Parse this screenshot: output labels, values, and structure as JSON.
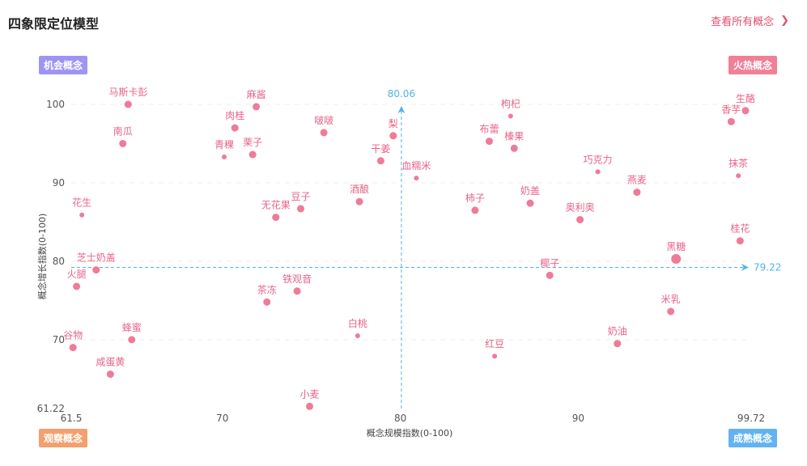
{
  "header": {
    "title": "四象限定位模型",
    "view_all": "查看所有概念"
  },
  "quadrants": {
    "opportunity": "机会概念",
    "hot": "火热概念",
    "observe": "观察概念",
    "mature": "成熟概念"
  },
  "colors": {
    "point": "#f07a98",
    "label": "#e86488",
    "ref_line": "#4fb3e8",
    "grid": "#eeeeee"
  },
  "chart_data": {
    "type": "scatter",
    "xlabel": "概念规模指数(0-100)",
    "ylabel": "概念增长指数(0-100)",
    "xlim": [
      61.5,
      99.72
    ],
    "ylim": [
      61.22,
      100
    ],
    "x_ticks": [
      "61.5",
      "70",
      "80",
      "90",
      "99.72"
    ],
    "y_ticks": [
      "61.22",
      "70",
      "80",
      "90",
      "100"
    ],
    "ref_x": 80.06,
    "ref_y": 79.22,
    "ref_x_label": "80.06",
    "ref_y_label": "79.22",
    "grid": true,
    "points": [
      {
        "name": "马斯卡彭",
        "x": 64.7,
        "y": 100.0,
        "size": "m"
      },
      {
        "name": "麻酱",
        "x": 71.9,
        "y": 99.7,
        "size": "m"
      },
      {
        "name": "枸杞",
        "x": 86.2,
        "y": 98.5,
        "size": "s"
      },
      {
        "name": "生酪",
        "x": 99.4,
        "y": 99.2,
        "size": "m"
      },
      {
        "name": "香芋",
        "x": 98.6,
        "y": 97.8,
        "size": "m"
      },
      {
        "name": "肉桂",
        "x": 70.7,
        "y": 97.0,
        "size": "m"
      },
      {
        "name": "梨",
        "x": 79.6,
        "y": 96.0,
        "size": "m"
      },
      {
        "name": "啵啵",
        "x": 75.7,
        "y": 96.4,
        "size": "m"
      },
      {
        "name": "南瓜",
        "x": 64.4,
        "y": 95.0,
        "size": "m"
      },
      {
        "name": "布蕾",
        "x": 85.0,
        "y": 95.3,
        "size": "m"
      },
      {
        "name": "榛果",
        "x": 86.4,
        "y": 94.4,
        "size": "m"
      },
      {
        "name": "青稞",
        "x": 70.1,
        "y": 93.3,
        "size": "s"
      },
      {
        "name": "栗子",
        "x": 71.7,
        "y": 93.6,
        "size": "m"
      },
      {
        "name": "干姜",
        "x": 78.9,
        "y": 92.8,
        "size": "m"
      },
      {
        "name": "巧克力",
        "x": 91.1,
        "y": 91.4,
        "size": "s"
      },
      {
        "name": "抹茶",
        "x": 99.0,
        "y": 90.9,
        "size": "s"
      },
      {
        "name": "血糯米",
        "x": 80.9,
        "y": 90.6,
        "size": "s"
      },
      {
        "name": "燕麦",
        "x": 93.3,
        "y": 88.8,
        "size": "m"
      },
      {
        "name": "酒酿",
        "x": 77.7,
        "y": 87.6,
        "size": "m"
      },
      {
        "name": "奶盖",
        "x": 87.3,
        "y": 87.4,
        "size": "m"
      },
      {
        "name": "豆子",
        "x": 74.4,
        "y": 86.7,
        "size": "m"
      },
      {
        "name": "柿子",
        "x": 84.2,
        "y": 86.5,
        "size": "m"
      },
      {
        "name": "花生",
        "x": 62.1,
        "y": 85.9,
        "size": "s"
      },
      {
        "name": "无花果",
        "x": 73.0,
        "y": 85.6,
        "size": "m"
      },
      {
        "name": "奥利奥",
        "x": 90.1,
        "y": 85.3,
        "size": "m"
      },
      {
        "name": "桂花",
        "x": 99.1,
        "y": 82.6,
        "size": "m"
      },
      {
        "name": "黑糖",
        "x": 95.5,
        "y": 80.3,
        "size": "l"
      },
      {
        "name": "芝士奶盖",
        "x": 62.9,
        "y": 78.9,
        "size": "m"
      },
      {
        "name": "椰子",
        "x": 88.4,
        "y": 78.2,
        "size": "m"
      },
      {
        "name": "火腿",
        "x": 61.8,
        "y": 76.8,
        "size": "m"
      },
      {
        "name": "铁观音",
        "x": 74.2,
        "y": 76.2,
        "size": "m"
      },
      {
        "name": "茶冻",
        "x": 72.5,
        "y": 74.8,
        "size": "m"
      },
      {
        "name": "米乳",
        "x": 95.2,
        "y": 73.6,
        "size": "m"
      },
      {
        "name": "蜂蜜",
        "x": 64.9,
        "y": 70.0,
        "size": "m"
      },
      {
        "name": "白桃",
        "x": 77.6,
        "y": 70.5,
        "size": "s"
      },
      {
        "name": "奶油",
        "x": 92.2,
        "y": 69.5,
        "size": "m"
      },
      {
        "name": "谷物",
        "x": 61.6,
        "y": 69.0,
        "size": "m"
      },
      {
        "name": "红豆",
        "x": 85.3,
        "y": 67.9,
        "size": "s"
      },
      {
        "name": "咸蛋黄",
        "x": 63.7,
        "y": 65.6,
        "size": "m"
      },
      {
        "name": "小麦",
        "x": 74.9,
        "y": 61.5,
        "size": "m"
      }
    ]
  }
}
